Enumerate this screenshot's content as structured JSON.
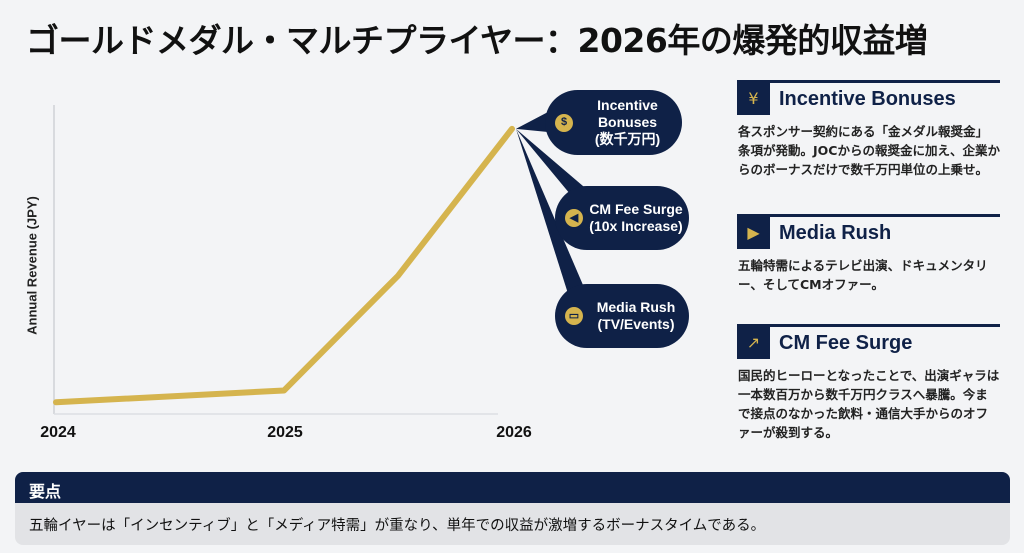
{
  "title": "ゴールドメダル・マルチプライヤー：2026年の爆発的収益増",
  "colors": {
    "navy": "#0f2147",
    "gold": "#d5b44e",
    "background": "#f3f4f6"
  },
  "chart_data": {
    "type": "line",
    "ylabel": "Annual Revenue (JPY)",
    "xlabel": "",
    "x_ticks": [
      "2024",
      "2025",
      "2026"
    ],
    "x": [
      2024,
      2025,
      2025.5,
      2026
    ],
    "values": [
      4,
      8,
      47,
      97
    ],
    "ylim": [
      0,
      100
    ],
    "xlim": [
      2024,
      2026
    ],
    "y_scale_note_visible": false,
    "grid": false,
    "line_color": "#d5b44e"
  },
  "callouts": [
    {
      "label": "Incentive\nBonuses\n(数千万円)",
      "icon": "money-bag-icon"
    },
    {
      "label": "CM Fee Surge\n(10x Increase)",
      "icon": "megaphone-icon"
    },
    {
      "label": "Media Rush\n(TV/Events)",
      "icon": "tv-icon"
    }
  ],
  "cards": [
    {
      "title": "Incentive Bonuses",
      "icon": "coins-hand-icon",
      "body": "各スポンサー契約にある「金メダル報奨金」条項が発動。JOCからの報奨金に加え、企業からのボーナスだけで数千万円単位の上乗せ。"
    },
    {
      "title": "Media Rush",
      "icon": "video-camera-icon",
      "body": "五輪特需によるテレビ出演、ドキュメンタリー、そしてCMオファー。"
    },
    {
      "title": "CM Fee Surge",
      "icon": "rising-chart-icon",
      "body": "国民的ヒーローとなったことで、出演ギャラは一本数百万から数千万円クラスへ暴騰。今まで接点のなかった飲料・通信大手からのオファーが殺到する。"
    }
  ],
  "key_point": {
    "heading": "要点",
    "text": "五輪イヤーは「インセンティブ」と「メディア特需」が重なり、単年での収益が激増するボーナスタイムである。"
  }
}
